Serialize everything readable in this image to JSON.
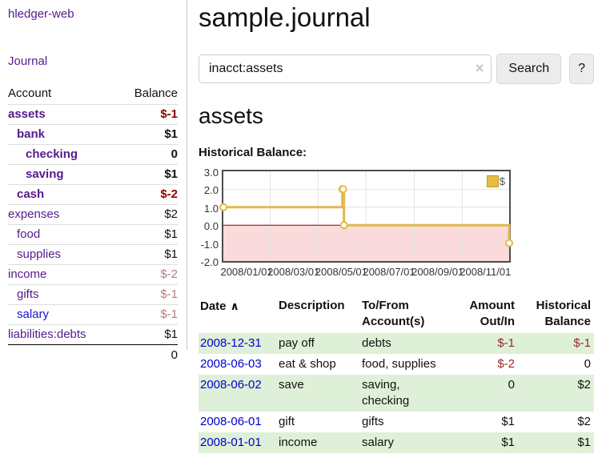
{
  "header": {
    "title": "sample.journal"
  },
  "sidebar": {
    "brand": "hledger-web",
    "journal_link": "Journal",
    "table": {
      "account_header": "Account",
      "balance_header": "Balance"
    },
    "accounts": [
      {
        "name": "assets",
        "depth": 1,
        "bold": true,
        "balance": "$-1",
        "balance_style": "neg"
      },
      {
        "name": "bank",
        "depth": 2,
        "bold": true,
        "balance": "$1",
        "balance_style": "pos"
      },
      {
        "name": "checking",
        "depth": 3,
        "bold": true,
        "balance": "0",
        "balance_style": "pos"
      },
      {
        "name": "saving",
        "depth": 3,
        "bold": true,
        "balance": "$1",
        "balance_style": "pos"
      },
      {
        "name": "cash",
        "depth": 2,
        "bold": true,
        "balance": "$-2",
        "balance_style": "neg"
      },
      {
        "name": "expenses",
        "depth": 1,
        "bold": false,
        "balance": "$2",
        "balance_style": "pos"
      },
      {
        "name": "food",
        "depth": 2,
        "bold": false,
        "balance": "$1",
        "balance_style": "pos"
      },
      {
        "name": "supplies",
        "depth": 2,
        "bold": false,
        "balance": "$1",
        "balance_style": "pos"
      },
      {
        "name": "income",
        "depth": 1,
        "bold": false,
        "balance": "$-2",
        "balance_style": "neg-muted"
      },
      {
        "name": "gifts",
        "depth": 2,
        "bold": false,
        "balance": "$-1",
        "balance_style": "neg-muted"
      },
      {
        "name": "salary",
        "depth": 2,
        "bold": false,
        "link_style": "blue",
        "balance": "$-1",
        "balance_style": "neg-muted"
      },
      {
        "name": "liabilities:debts",
        "depth": 1,
        "bold": false,
        "balance": "$1",
        "balance_style": "pos"
      }
    ],
    "total": "0"
  },
  "search": {
    "value": "inacct:assets",
    "clear_icon": "×",
    "button_label": "Search",
    "help_label": "?"
  },
  "account_page": {
    "heading": "assets",
    "chart_label": "Historical Balance:"
  },
  "chart_data": {
    "type": "line",
    "title": "Historical Balance",
    "step": "after",
    "series": [
      {
        "name": "$",
        "color": "#e3b94a",
        "points": [
          [
            "2008-01-01",
            1
          ],
          [
            "2008-06-01",
            2
          ],
          [
            "2008-06-02",
            2
          ],
          [
            "2008-06-03",
            0
          ],
          [
            "2008-12-31",
            -1
          ]
        ]
      }
    ],
    "x_domain": [
      "2008-01-01",
      "2008-12-31"
    ],
    "x_ticks": [
      "2008/01/01",
      "2008/03/01",
      "2008/05/01",
      "2008/07/01",
      "2008/09/01",
      "2008/11/01"
    ],
    "y_ticks": [
      3,
      2,
      1,
      0,
      -1,
      -2
    ],
    "ylim": [
      -2,
      3
    ],
    "grid": true,
    "legend": {
      "label": "$",
      "position": "top-right"
    },
    "negative_region_color": "#fadada",
    "zero_line_color": "#8b0000",
    "grid_color": "#e3e3e3"
  },
  "register": {
    "headers": {
      "date": "Date",
      "sort_icon": "∧",
      "description": "Description",
      "accounts_line1": "To/From",
      "accounts_line2": "Account(s)",
      "amount_line1": "Amount",
      "amount_line2": "Out/In",
      "balance_line1": "Historical",
      "balance_line2": "Balance"
    },
    "rows": [
      {
        "date": "2008-12-31",
        "description": "pay off",
        "accounts": "debts",
        "amount": "$-1",
        "amount_negative": true,
        "balance": "$-1",
        "balance_negative": true
      },
      {
        "date": "2008-06-03",
        "description": "eat & shop",
        "accounts": "food, supplies",
        "amount": "$-2",
        "amount_negative": true,
        "balance": "0",
        "balance_negative": false
      },
      {
        "date": "2008-06-02",
        "description": "save",
        "accounts": "saving, checking",
        "amount": "0",
        "amount_negative": false,
        "balance": "$2",
        "balance_negative": false
      },
      {
        "date": "2008-06-01",
        "description": "gift",
        "accounts": "gifts",
        "amount": "$1",
        "amount_negative": false,
        "balance": "$2",
        "balance_negative": false
      },
      {
        "date": "2008-01-01",
        "description": "income",
        "accounts": "salary",
        "amount": "$1",
        "amount_negative": false,
        "balance": "$1",
        "balance_negative": false
      }
    ]
  },
  "colors": {
    "link_purple": "#551a8b",
    "link_blue": "#1414d2",
    "date_link_blue": "#0000cc",
    "negative_strong": "#8b0000",
    "negative_muted": "#b97a7a",
    "row_stripe_green": "#dff0d8",
    "chart_gold": "#e3b94a"
  }
}
